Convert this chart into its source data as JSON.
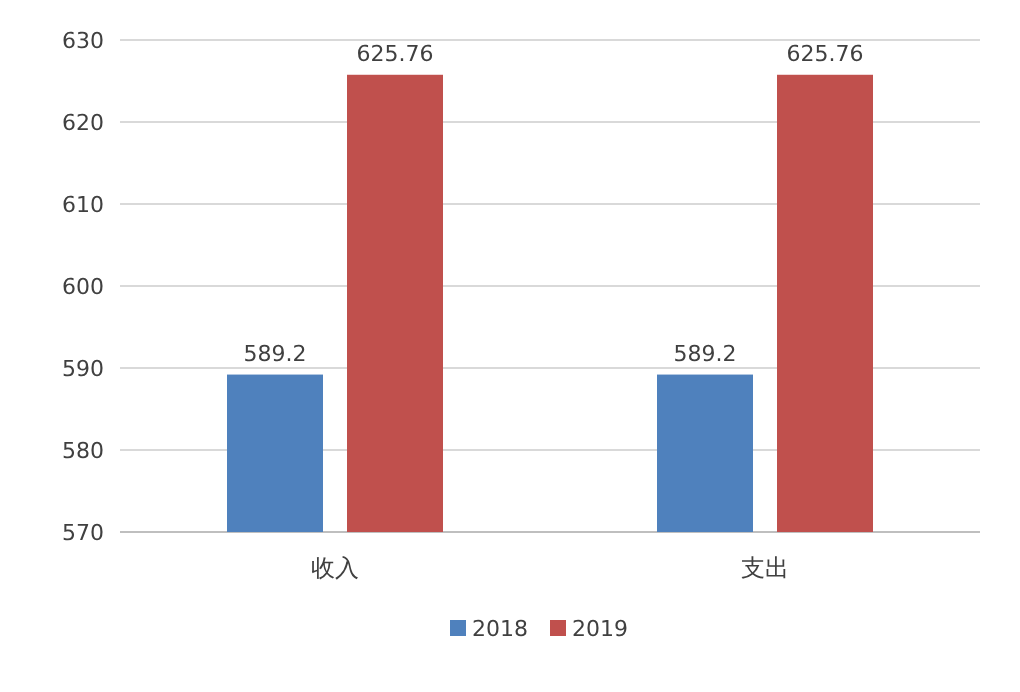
{
  "chart_data": {
    "type": "bar",
    "categories": [
      "收入",
      "支出"
    ],
    "series": [
      {
        "name": "2018",
        "color": "#4f81bd",
        "values": [
          589.2,
          589.2
        ]
      },
      {
        "name": "2019",
        "color": "#c0504d",
        "values": [
          625.76,
          625.76
        ]
      }
    ],
    "ylim": [
      570,
      630
    ],
    "yticks": [
      570,
      580,
      590,
      600,
      610,
      620,
      630
    ],
    "grid": "y",
    "legend": "bottom",
    "data_labels": true
  }
}
